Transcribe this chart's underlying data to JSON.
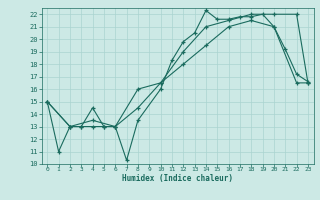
{
  "xlabel": "Humidex (Indice chaleur)",
  "bg_color": "#cce9e5",
  "grid_color": "#aad4d0",
  "line_color": "#1a6b5e",
  "xlim": [
    -0.5,
    23.5
  ],
  "ylim": [
    10,
    22.5
  ],
  "xticks": [
    0,
    1,
    2,
    3,
    4,
    5,
    6,
    7,
    8,
    9,
    10,
    11,
    12,
    13,
    14,
    15,
    16,
    17,
    18,
    19,
    20,
    21,
    22,
    23
  ],
  "yticks": [
    10,
    11,
    12,
    13,
    14,
    15,
    16,
    17,
    18,
    19,
    20,
    21,
    22
  ],
  "series1_x": [
    0,
    1,
    2,
    3,
    4,
    5,
    6,
    7,
    8,
    10,
    11,
    12,
    13,
    14,
    15,
    16,
    17,
    18,
    19,
    20,
    21,
    22,
    23
  ],
  "series1_y": [
    15,
    11,
    13,
    13,
    13,
    13,
    13,
    10.3,
    13.5,
    16,
    18.3,
    19.8,
    20.5,
    22.3,
    21.6,
    21.6,
    21.8,
    21.8,
    22,
    21,
    19.2,
    17.2,
    16.6
  ],
  "series2_x": [
    0,
    2,
    3,
    4,
    5,
    6,
    8,
    10,
    12,
    14,
    16,
    18,
    20,
    22,
    23
  ],
  "series2_y": [
    15,
    13,
    13,
    14.5,
    13,
    13,
    16,
    16.5,
    18,
    19.5,
    21,
    21.5,
    21,
    16.5,
    16.5
  ],
  "series3_x": [
    0,
    2,
    4,
    6,
    8,
    10,
    12,
    14,
    16,
    18,
    20,
    22,
    23
  ],
  "series3_y": [
    15,
    13,
    13.5,
    13,
    14.5,
    16.5,
    19,
    21,
    21.5,
    22,
    22,
    22,
    16.5
  ]
}
